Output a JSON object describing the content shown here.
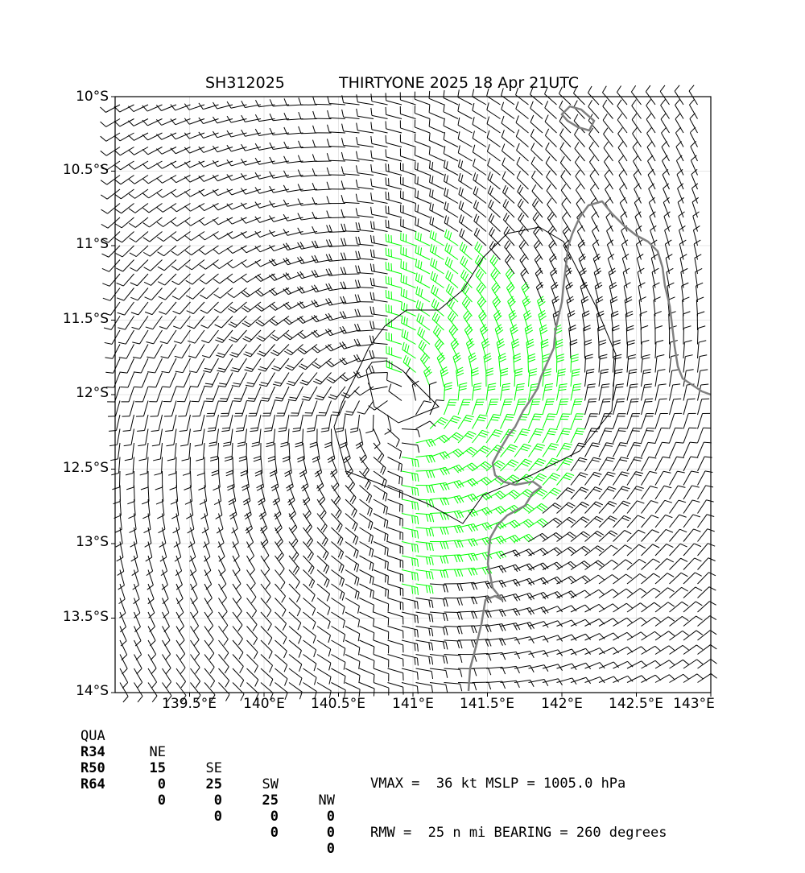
{
  "title": {
    "storm_id": "SH312025",
    "description": "THIRTYONE 2025 18 Apr 21UTC"
  },
  "map": {
    "lat_ticks": [
      "10°S",
      "10.5°S",
      "11°S",
      "11.5°S",
      "12°S",
      "12.5°S",
      "13°S",
      "13.5°S",
      "14°S"
    ],
    "lon_ticks": [
      "139.5°E",
      "140°E",
      "140.5°E",
      "141°E",
      "141.5°E",
      "142°E",
      "142.5°E",
      "143°E"
    ],
    "lat_range": [
      -14.0,
      -10.0
    ],
    "lon_range": [
      139.0,
      143.0
    ],
    "center": {
      "lat": -12.1,
      "lon": 140.9
    },
    "grid": true,
    "barb_colors": {
      "default": "#000000",
      "gale": "#00ff00"
    },
    "coastline_color": "#808080"
  },
  "wind_radii": {
    "headers": [
      "QUA",
      "NE",
      "SE",
      "SW",
      "NW"
    ],
    "rows": [
      {
        "label": "R34",
        "values": [
          "15",
          "25",
          "25",
          "0"
        ]
      },
      {
        "label": "R50",
        "values": [
          "0",
          "0",
          "0",
          "0"
        ]
      },
      {
        "label": "R64",
        "values": [
          "0",
          "0",
          "0",
          "0"
        ]
      }
    ]
  },
  "stats": {
    "line1": "VMAX =  36 kt MSLP = 1005.0 hPa",
    "line2": "RMW =  25 n mi BEARING = 260 degrees"
  }
}
